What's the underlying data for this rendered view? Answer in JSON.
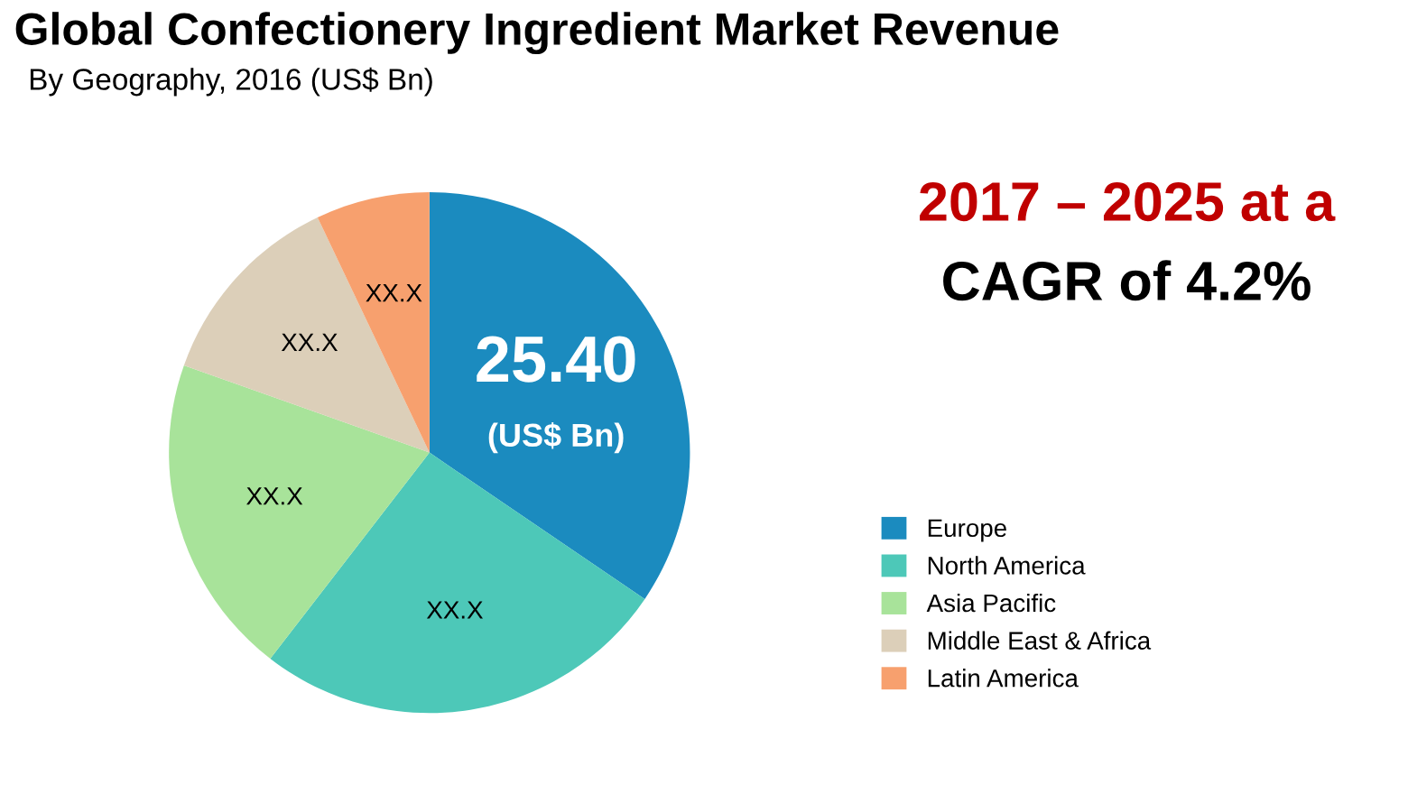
{
  "chart_data": {
    "type": "pie",
    "title": "Global Confectionery Ingredient Market Revenue",
    "subtitle": "By Geography, 2016 (US$ Bn)",
    "categories": [
      "Europe",
      "North America",
      "Asia Pacific",
      "Middle East & Africa",
      "Latin America"
    ],
    "values": [
      25.4,
      19.1,
      14.7,
      9.2,
      5.2
    ],
    "colors": [
      "#1b8bbf",
      "#4dc8b8",
      "#a8e39a",
      "#dccfb9",
      "#f7a06e"
    ],
    "value_labels": [
      "25.40\n(US$ Bn)",
      "XX.X",
      "XX.X",
      "XX.X",
      "XX.X"
    ],
    "annotations": [
      "2017 – 2025 at a",
      "CAGR of 4.2%"
    ],
    "legend": "right"
  }
}
